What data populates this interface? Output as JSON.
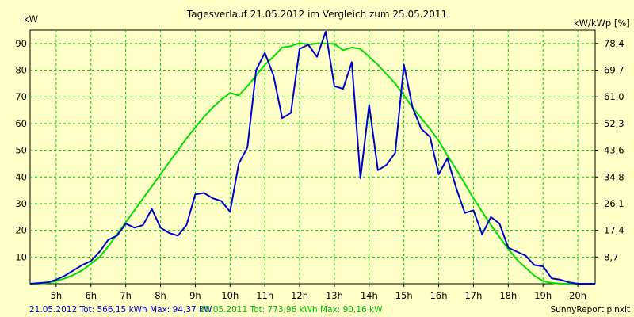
{
  "chart_data": {
    "type": "line",
    "title": "Tagesverlauf 21.05.2012 im Vergleich zum 25.05.2011",
    "ylabel_left": "kW",
    "ylabel_right": "kW/kWp [%]",
    "ylim": [
      0,
      95
    ],
    "xlim": [
      4.25,
      20.5
    ],
    "y_ticks": [
      10,
      20,
      30,
      40,
      50,
      60,
      70,
      80,
      90
    ],
    "y_right_ticks": [
      "8,7",
      "17,4",
      "26,1",
      "34,8",
      "43,6",
      "52,3",
      "61,0",
      "69,7",
      "78,4"
    ],
    "x_ticks": [
      5,
      6,
      7,
      8,
      9,
      10,
      11,
      12,
      13,
      14,
      15,
      16,
      17,
      18,
      19,
      20
    ],
    "x_tick_labels": [
      "5h",
      "6h",
      "7h",
      "8h",
      "9h",
      "10h",
      "11h",
      "12h",
      "13h",
      "14h",
      "15h",
      "16h",
      "17h",
      "18h",
      "19h",
      "20h"
    ],
    "grid": true,
    "series": [
      {
        "name": "21.05.2012 Tot: 566,15 kWh Max: 94,37 kW",
        "color": "#0000cc",
        "x": [
          4.25,
          4.75,
          5.0,
          5.25,
          5.5,
          5.75,
          6.0,
          6.25,
          6.5,
          6.75,
          7.0,
          7.25,
          7.5,
          7.75,
          8.0,
          8.25,
          8.5,
          8.75,
          9.0,
          9.25,
          9.5,
          9.75,
          10.0,
          10.25,
          10.5,
          10.75,
          11.0,
          11.25,
          11.5,
          11.75,
          12.0,
          12.25,
          12.5,
          12.75,
          13.0,
          13.25,
          13.5,
          13.75,
          14.0,
          14.25,
          14.5,
          14.75,
          15.0,
          15.25,
          15.5,
          15.75,
          16.0,
          16.25,
          16.5,
          16.75,
          17.0,
          17.25,
          17.5,
          17.75,
          18.0,
          18.25,
          18.5,
          18.75,
          19.0,
          19.25,
          19.5,
          19.75,
          20.0,
          20.5
        ],
        "values": [
          0,
          0.5,
          1.5,
          3,
          5,
          7,
          8.5,
          12,
          16.5,
          18,
          22.5,
          21,
          22,
          28,
          21,
          19,
          18,
          22,
          33.5,
          34,
          32,
          31,
          27,
          45,
          51,
          80,
          86.5,
          78,
          62,
          64,
          88,
          89.5,
          85,
          94.4,
          74,
          73,
          83,
          39.5,
          67,
          42.5,
          44.5,
          49,
          82,
          66,
          58,
          55,
          41,
          47,
          36,
          26.5,
          27.5,
          18.5,
          25,
          22.5,
          13.5,
          12,
          10.5,
          7,
          6.5,
          2,
          1.5,
          0.5,
          0,
          0
        ]
      },
      {
        "name": "25.05.2011 Tot: 773,96 kWh Max: 90,16 kW",
        "color": "#00dd00",
        "x": [
          4.25,
          4.5,
          4.75,
          5.0,
          5.25,
          5.5,
          5.75,
          6.0,
          6.25,
          6.5,
          6.75,
          7.0,
          7.25,
          7.5,
          7.75,
          8.0,
          8.25,
          8.5,
          8.75,
          9.0,
          9.25,
          9.5,
          9.75,
          10.0,
          10.25,
          10.5,
          10.75,
          11.0,
          11.25,
          11.5,
          11.75,
          12.0,
          12.25,
          12.5,
          12.75,
          13.0,
          13.25,
          13.5,
          13.75,
          14.0,
          14.25,
          14.5,
          14.75,
          15.0,
          15.25,
          15.5,
          15.75,
          16.0,
          16.25,
          16.5,
          16.75,
          17.0,
          17.25,
          17.5,
          17.75,
          18.0,
          18.25,
          18.5,
          18.75,
          19.0,
          19.25,
          19.5,
          19.75,
          20.0,
          20.5
        ],
        "values": [
          0,
          0,
          0.3,
          1,
          2,
          3.3,
          5,
          7.5,
          10,
          14,
          18.5,
          23,
          27.5,
          32,
          36.5,
          41,
          45.5,
          50,
          54.5,
          58.5,
          62.5,
          66,
          69,
          71.5,
          70.5,
          74,
          78,
          82,
          85,
          88.5,
          89,
          90.2,
          89.5,
          90,
          90,
          89.8,
          87.5,
          88.5,
          88,
          85,
          82,
          78.5,
          75,
          70.5,
          66,
          62,
          58,
          53.5,
          48,
          43,
          37.5,
          32,
          27,
          22,
          17.5,
          13,
          9,
          6,
          3,
          1,
          0.3,
          0,
          0,
          0,
          0
        ]
      }
    ]
  },
  "footer": {
    "legend_2012": "21.05.2012 Tot: 566,15 kWh Max: 94,37 kW",
    "legend_2011": "25.05.2011 Tot: 773,96 kWh Max: 90,16 kW",
    "credit": "SunnyReport pinxit"
  }
}
